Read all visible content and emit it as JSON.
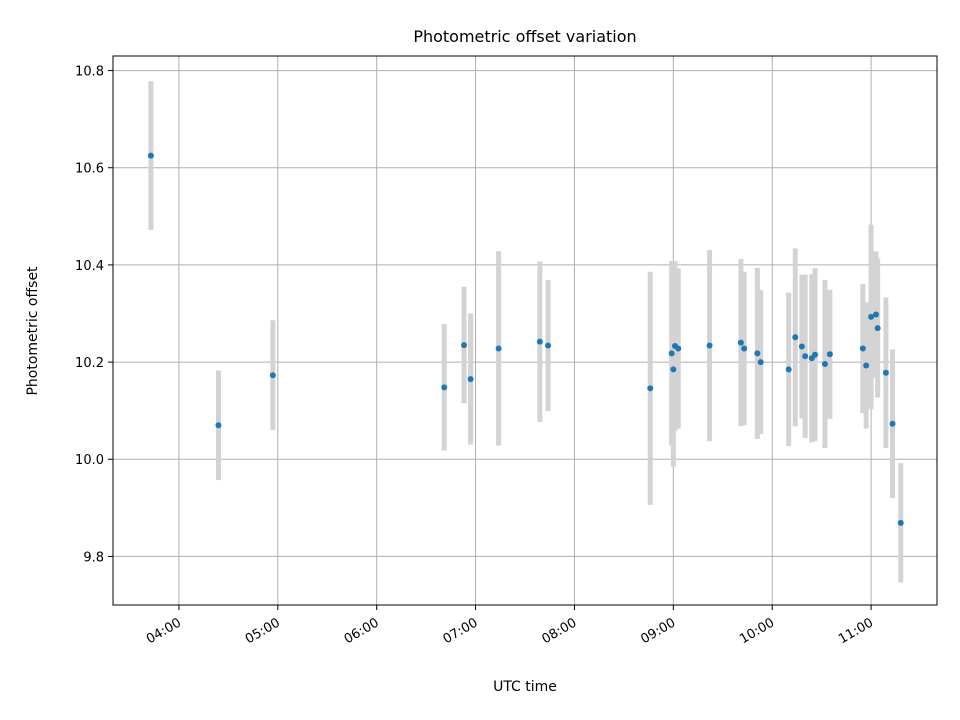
{
  "chart_data": {
    "type": "scatter",
    "title": "Photometric offset variation",
    "xlabel": "UTC time",
    "ylabel": "Photometric offset",
    "x_tick_labels": [
      "04:00",
      "05:00",
      "06:00",
      "07:00",
      "08:00",
      "09:00",
      "10:00",
      "11:00"
    ],
    "x_ticks": [
      "04:00",
      "05:00",
      "06:00",
      "07:00",
      "08:00",
      "09:00",
      "10:00",
      "11:00"
    ],
    "y_ticks": [
      9.8,
      10.0,
      10.2,
      10.4,
      10.6,
      10.8
    ],
    "y_tick_labels": [
      "9.8",
      "10.0",
      "10.2",
      "10.4",
      "10.6",
      "10.8"
    ],
    "xlim": [
      "03:20",
      "11:40"
    ],
    "ylim": [
      9.7,
      10.83
    ],
    "grid": true,
    "colors": {
      "point": "#1f77b4",
      "errorbar": "#d3d3d3",
      "grid": "#b0b0b0"
    },
    "points": [
      {
        "x": "03:43",
        "y": 10.625,
        "err": 0.153
      },
      {
        "x": "04:24",
        "y": 10.07,
        "err": 0.113
      },
      {
        "x": "04:57",
        "y": 10.173,
        "err": 0.113
      },
      {
        "x": "06:41",
        "y": 10.148,
        "err": 0.13
      },
      {
        "x": "06:53",
        "y": 10.235,
        "err": 0.12
      },
      {
        "x": "06:57",
        "y": 10.165,
        "err": 0.135
      },
      {
        "x": "07:14",
        "y": 10.228,
        "err": 0.2
      },
      {
        "x": "07:39",
        "y": 10.242,
        "err": 0.165
      },
      {
        "x": "07:44",
        "y": 10.234,
        "err": 0.135
      },
      {
        "x": "08:46",
        "y": 10.146,
        "err": 0.24
      },
      {
        "x": "08:59",
        "y": 10.218,
        "err": 0.19
      },
      {
        "x": "09:00",
        "y": 10.185,
        "err": 0.2
      },
      {
        "x": "09:01",
        "y": 10.233,
        "err": 0.175
      },
      {
        "x": "09:03",
        "y": 10.228,
        "err": 0.165
      },
      {
        "x": "09:22",
        "y": 10.234,
        "err": 0.197
      },
      {
        "x": "09:41",
        "y": 10.24,
        "err": 0.172
      },
      {
        "x": "09:43",
        "y": 10.228,
        "err": 0.158
      },
      {
        "x": "09:51",
        "y": 10.218,
        "err": 0.176
      },
      {
        "x": "09:53",
        "y": 10.2,
        "err": 0.148
      },
      {
        "x": "10:10",
        "y": 10.185,
        "err": 0.158
      },
      {
        "x": "10:14",
        "y": 10.251,
        "err": 0.183
      },
      {
        "x": "10:18",
        "y": 10.232,
        "err": 0.148
      },
      {
        "x": "10:20",
        "y": 10.212,
        "err": 0.168
      },
      {
        "x": "10:24",
        "y": 10.208,
        "err": 0.173
      },
      {
        "x": "10:26",
        "y": 10.215,
        "err": 0.178
      },
      {
        "x": "10:32",
        "y": 10.196,
        "err": 0.173
      },
      {
        "x": "10:35",
        "y": 10.216,
        "err": 0.133
      },
      {
        "x": "10:55",
        "y": 10.228,
        "err": 0.133
      },
      {
        "x": "10:57",
        "y": 10.193,
        "err": 0.13
      },
      {
        "x": "11:00",
        "y": 10.293,
        "err": 0.19
      },
      {
        "x": "11:03",
        "y": 10.298,
        "err": 0.13
      },
      {
        "x": "11:04",
        "y": 10.27,
        "err": 0.143
      },
      {
        "x": "11:09",
        "y": 10.178,
        "err": 0.155
      },
      {
        "x": "11:13",
        "y": 10.073,
        "err": 0.153
      },
      {
        "x": "11:18",
        "y": 9.869,
        "err": 0.123
      }
    ]
  }
}
